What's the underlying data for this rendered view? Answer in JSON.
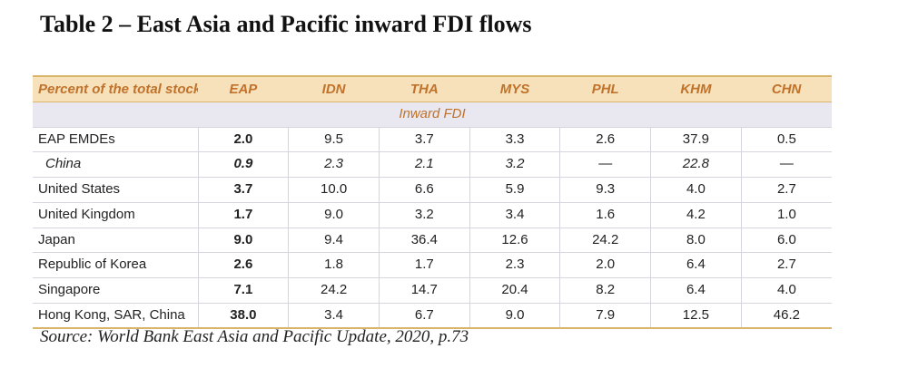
{
  "title": "Table 2 – East Asia and Pacific inward FDI flows",
  "table": {
    "header_label": "Percent of the total stock",
    "columns": [
      "EAP",
      "IDN",
      "THA",
      "MYS",
      "PHL",
      "KHM",
      "CHN"
    ],
    "section_label": "Inward FDI",
    "rows": [
      {
        "label": "EAP EMDEs",
        "values": [
          "2.0",
          "9.5",
          "3.7",
          "3.3",
          "2.6",
          "37.9",
          "0.5"
        ]
      },
      {
        "label": "China",
        "values": [
          "0.9",
          "2.3",
          "2.1",
          "3.2",
          "—",
          "22.8",
          "—"
        ]
      },
      {
        "label": "United States",
        "values": [
          "3.7",
          "10.0",
          "6.6",
          "5.9",
          "9.3",
          "4.0",
          "2.7"
        ]
      },
      {
        "label": "United Kingdom",
        "values": [
          "1.7",
          "9.0",
          "3.2",
          "3.4",
          "1.6",
          "4.2",
          "1.0"
        ]
      },
      {
        "label": "Japan",
        "values": [
          "9.0",
          "9.4",
          "36.4",
          "12.6",
          "24.2",
          "8.0",
          "6.0"
        ]
      },
      {
        "label": "Republic of Korea",
        "values": [
          "2.6",
          "1.8",
          "1.7",
          "2.3",
          "2.0",
          "6.4",
          "2.7"
        ]
      },
      {
        "label": "Singapore",
        "values": [
          "7.1",
          "24.2",
          "14.7",
          "20.4",
          "8.2",
          "6.4",
          "4.0"
        ]
      },
      {
        "label": "Hong Kong, SAR, China",
        "values": [
          "38.0",
          "3.4",
          "6.7",
          "9.0",
          "7.9",
          "12.5",
          "46.2"
        ]
      }
    ]
  },
  "source": "Source: World Bank East Asia and Pacific Update, 2020, p.73",
  "colors": {
    "header_background": "#f6e1bb",
    "header_text": "#c0722a",
    "section_background": "#e9e8f0",
    "rule": "#d8b56a"
  }
}
